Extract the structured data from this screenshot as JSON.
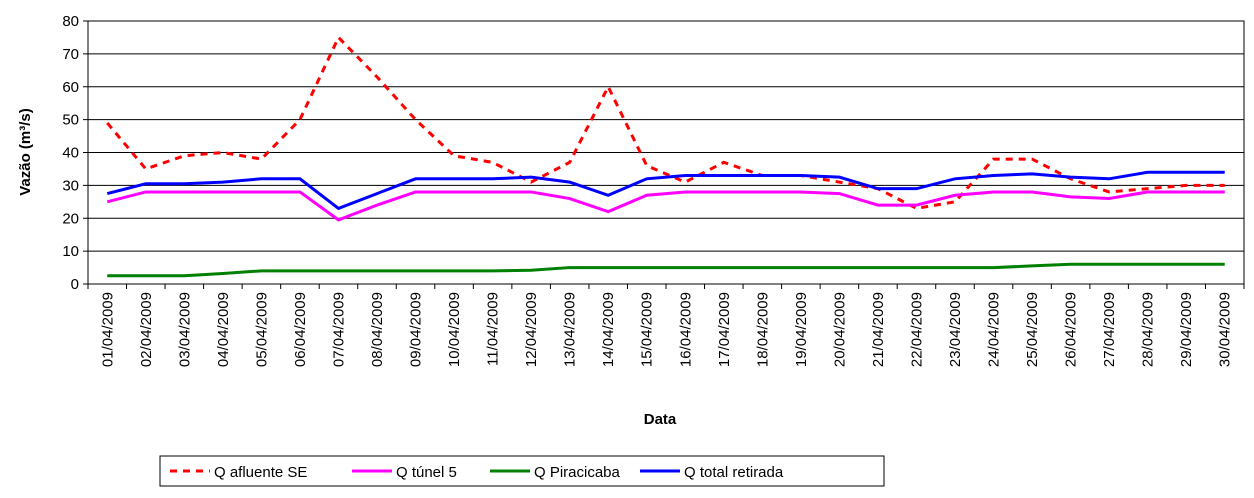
{
  "chart_data": {
    "type": "line",
    "x_label": "Data",
    "y_label": "Vazão (m³/s)",
    "categories": [
      "01/04/2009",
      "02/04/2009",
      "03/04/2009",
      "04/04/2009",
      "05/04/2009",
      "06/04/2009",
      "07/04/2009",
      "08/04/2009",
      "09/04/2009",
      "10/04/2009",
      "11/04/2009",
      "12/04/2009",
      "13/04/2009",
      "14/04/2009",
      "15/04/2009",
      "16/04/2009",
      "17/04/2009",
      "18/04/2009",
      "19/04/2009",
      "20/04/2009",
      "21/04/2009",
      "22/04/2009",
      "23/04/2009",
      "24/04/2009",
      "25/04/2009",
      "26/04/2009",
      "27/04/2009",
      "28/04/2009",
      "29/04/2009",
      "30/04/2009"
    ],
    "series": [
      {
        "name": "Q afluente SE",
        "color": "#ff0000",
        "dashed": true,
        "values": [
          49,
          35,
          39,
          40,
          38,
          50,
          75,
          63,
          50,
          39,
          37,
          31,
          37,
          60,
          36,
          31,
          37,
          33,
          33,
          31,
          29,
          23,
          25,
          38,
          38,
          32,
          28,
          29,
          30,
          30
        ]
      },
      {
        "name": "Q túnel 5",
        "color": "#ff00ff",
        "values": [
          25,
          28,
          28,
          28,
          28,
          28,
          19.5,
          24,
          28,
          28,
          28,
          28,
          26,
          22,
          27,
          28,
          28,
          28,
          28,
          27.5,
          24,
          24,
          27,
          28,
          28,
          26.5,
          26,
          28,
          28,
          28
        ]
      },
      {
        "name": "Q Piracicaba",
        "color": "#008000",
        "values": [
          2.5,
          2.5,
          2.5,
          3.2,
          4,
          4,
          4,
          4,
          4,
          4,
          4,
          4.2,
          5,
          5,
          5,
          5,
          5,
          5,
          5,
          5,
          5,
          5,
          5,
          5,
          5.5,
          6,
          6,
          6,
          6,
          6
        ]
      },
      {
        "name": "Q total retirada",
        "color": "#0000ff",
        "values": [
          27.5,
          30.5,
          30.5,
          31,
          32,
          32,
          23,
          27.5,
          32,
          32,
          32,
          32.5,
          31,
          27,
          32,
          33,
          33,
          33,
          33,
          32.5,
          29,
          29,
          32,
          33,
          33.5,
          32.5,
          32,
          34,
          34,
          34
        ]
      }
    ],
    "ylim": [
      0,
      80
    ],
    "yticks": [
      0,
      10,
      20,
      30,
      40,
      50,
      60,
      70,
      80
    ],
    "grid": true
  }
}
